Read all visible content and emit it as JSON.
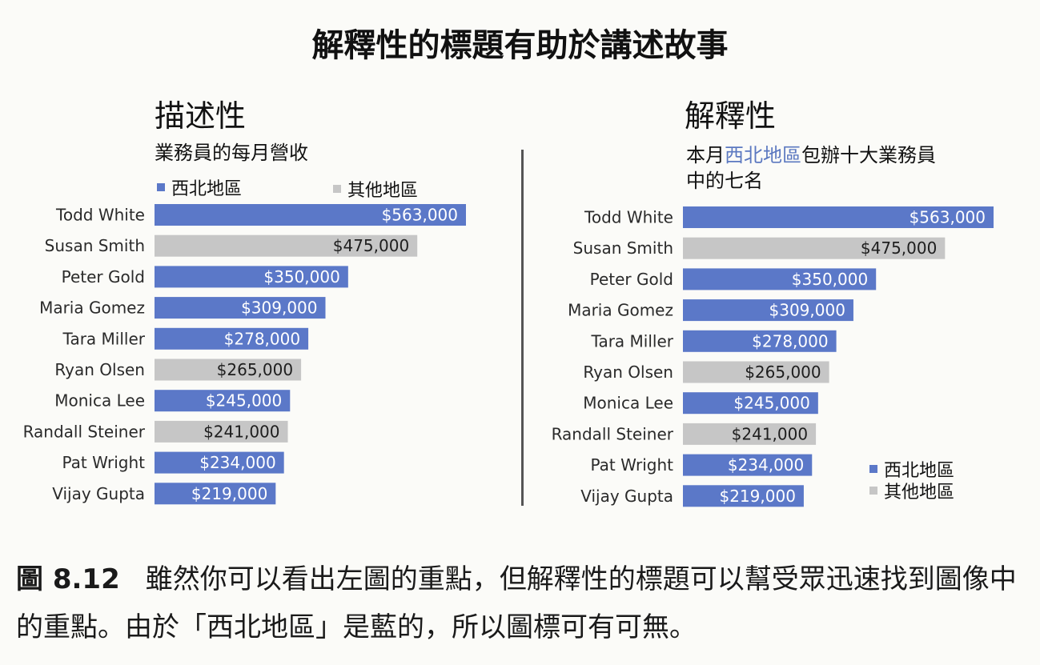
{
  "title": "解釋性的標題有助於講述故事",
  "left_panel": {
    "heading": "描述性",
    "subtitle": "業務員的每月營收",
    "legend": {
      "region_nw": "西北地區",
      "region_other": "其他地區"
    }
  },
  "right_panel": {
    "heading": "解釋性",
    "subtitle_part1": "本月",
    "subtitle_highlight": "西北地區",
    "subtitle_part2": "包辦十大業務員",
    "subtitle_line2": "中的七名",
    "legend": {
      "region_nw": "西北地區",
      "region_other": "其他地區"
    }
  },
  "colors": {
    "northwest": "#5b78c8",
    "other": "#c6c6c6",
    "highlight_text": "#5b78c0"
  },
  "chart_data": [
    {
      "type": "bar",
      "orientation": "horizontal",
      "title": "業務員的每月營收",
      "categories": [
        "Todd White",
        "Susan Smith",
        "Peter Gold",
        "Maria Gomez",
        "Tara Miller",
        "Ryan Olsen",
        "Monica Lee",
        "Randall Steiner",
        "Pat Wright",
        "Vijay Gupta"
      ],
      "values": [
        563000,
        475000,
        350000,
        309000,
        278000,
        265000,
        245000,
        241000,
        234000,
        219000
      ],
      "data_labels": [
        "$563,000",
        "$475,000",
        "$350,000",
        "$309,000",
        "$278,000",
        "$265,000",
        "$245,000",
        "$241,000",
        "$234,000",
        "$219,000"
      ],
      "region": [
        "西北地區",
        "其他地區",
        "西北地區",
        "西北地區",
        "西北地區",
        "其他地區",
        "西北地區",
        "其他地區",
        "西北地區",
        "西北地區"
      ],
      "legend": [
        "西北地區",
        "其他地區"
      ],
      "legend_position": "top",
      "grid": false
    },
    {
      "type": "bar",
      "orientation": "horizontal",
      "title": "本月西北地區包辦十大業務員中的七名",
      "categories": [
        "Todd White",
        "Susan Smith",
        "Peter Gold",
        "Maria Gomez",
        "Tara Miller",
        "Ryan Olsen",
        "Monica Lee",
        "Randall Steiner",
        "Pat Wright",
        "Vijay Gupta"
      ],
      "values": [
        563000,
        475000,
        350000,
        309000,
        278000,
        265000,
        245000,
        241000,
        234000,
        219000
      ],
      "data_labels": [
        "$563,000",
        "$475,000",
        "$350,000",
        "$309,000",
        "$278,000",
        "$265,000",
        "$245,000",
        "$241,000",
        "$234,000",
        "$219,000"
      ],
      "region": [
        "西北地區",
        "其他地區",
        "西北地區",
        "西北地區",
        "西北地區",
        "其他地區",
        "西北地區",
        "其他地區",
        "西北地區",
        "西北地區"
      ],
      "legend": [
        "西北地區",
        "其他地區"
      ],
      "legend_position": "bottom-right",
      "grid": false
    }
  ],
  "caption": {
    "number": "圖 8.12",
    "text": "雖然你可以看出左圖的重點，但解釋性的標題可以幫受眾迅速找到圖像中的重點。由於「西北地區」是藍的，所以圖標可有可無。"
  }
}
